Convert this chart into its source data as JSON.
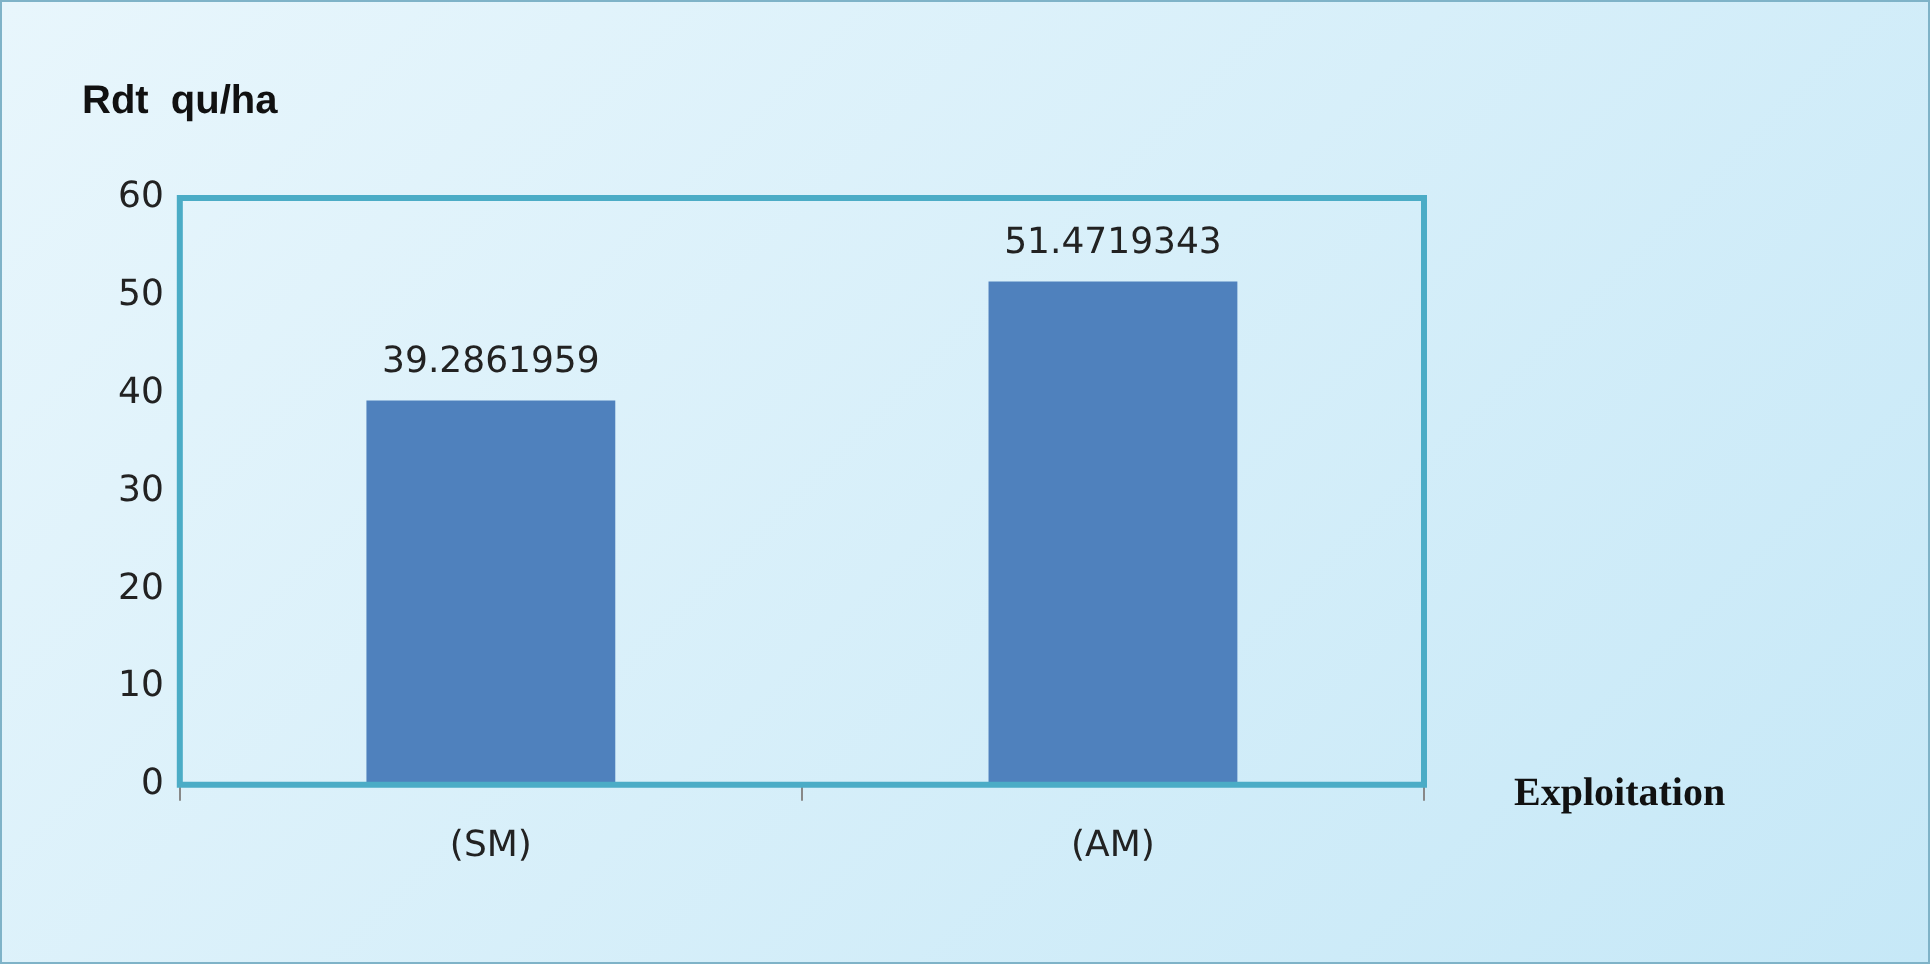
{
  "chart_data": {
    "type": "bar",
    "ylabel": "Rdt  qu/ha",
    "xlabel": "Exploitation",
    "categories": [
      "(SM)",
      "(AM)"
    ],
    "values": [
      39.2861959,
      51.4719343
    ],
    "color": "#4f81bd",
    "ylim": [
      0,
      60
    ],
    "yticks": [
      0,
      10,
      20,
      30,
      40,
      50,
      60
    ],
    "grid": false,
    "data_labels": true
  }
}
